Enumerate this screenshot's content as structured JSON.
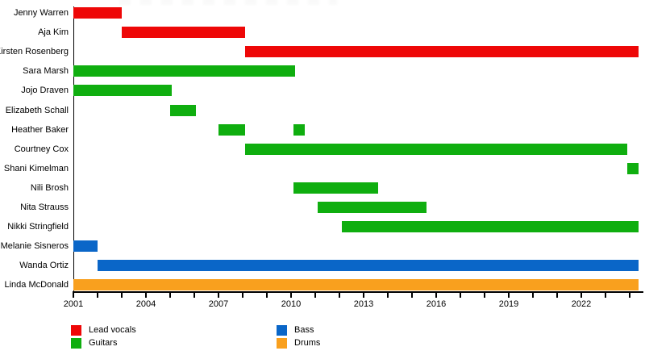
{
  "chart_data": {
    "type": "bar",
    "subtype": "gantt_timeline",
    "title": "",
    "description": "Band member timeline: horizontal bars show each member's tenure, colored by role",
    "x_axis": {
      "min": 2001,
      "max": 2024.36,
      "labeled_ticks": [
        2001,
        2004,
        2007,
        2010,
        2013,
        2016,
        2019,
        2022
      ],
      "minor_tick_interval_years": 1,
      "first_tick_year": 2001,
      "last_tick_year": 2024
    },
    "grid": "off",
    "legend": {
      "position": "bottom-left",
      "entries": [
        {
          "label": "Lead vocals",
          "color": "#ee0707"
        },
        {
          "label": "Guitars",
          "color": "#0fae0f"
        },
        {
          "label": "Bass",
          "color": "#0a66c8"
        },
        {
          "label": "Drums",
          "color": "#f9a01e"
        }
      ]
    },
    "role_colors": {
      "Lead vocals": "#ee0707",
      "Guitars": "#0fae0f",
      "Bass": "#0a66c8",
      "Drums": "#f9a01e"
    },
    "rows": [
      {
        "name": "Jenny Warren",
        "role": "Lead vocals",
        "segments": [
          [
            2001.0,
            2003.0
          ]
        ]
      },
      {
        "name": "Aja Kim",
        "role": "Lead vocals",
        "segments": [
          [
            2003.0,
            2008.1
          ]
        ]
      },
      {
        "name": "Kirsten Rosenberg",
        "role": "Lead vocals",
        "segments": [
          [
            2008.1,
            2024.36
          ]
        ]
      },
      {
        "name": "Sara Marsh",
        "role": "Guitars",
        "segments": [
          [
            2001.0,
            2010.15
          ]
        ]
      },
      {
        "name": "Jojo Draven",
        "role": "Guitars",
        "segments": [
          [
            2001.0,
            2005.05
          ]
        ]
      },
      {
        "name": "Elizabeth Schall",
        "role": "Guitars",
        "segments": [
          [
            2005.0,
            2006.05
          ]
        ]
      },
      {
        "name": "Heather Baker",
        "role": "Guitars",
        "segments": [
          [
            2007.0,
            2008.1
          ],
          [
            2010.1,
            2010.55
          ]
        ]
      },
      {
        "name": "Courtney Cox",
        "role": "Guitars",
        "segments": [
          [
            2008.1,
            2023.9
          ]
        ]
      },
      {
        "name": "Shani Kimelman",
        "role": "Guitars",
        "segments": [
          [
            2023.9,
            2024.36
          ]
        ]
      },
      {
        "name": "Nili Brosh",
        "role": "Guitars",
        "segments": [
          [
            2010.1,
            2013.6
          ]
        ]
      },
      {
        "name": "Nita Strauss",
        "role": "Guitars",
        "segments": [
          [
            2011.1,
            2015.6
          ]
        ]
      },
      {
        "name": "Nikki Stringfield",
        "role": "Guitars",
        "segments": [
          [
            2012.1,
            2024.36
          ]
        ]
      },
      {
        "name": "Melanie Sisneros",
        "role": "Bass",
        "segments": [
          [
            2001.0,
            2002.0
          ]
        ]
      },
      {
        "name": "Wanda Ortiz",
        "role": "Bass",
        "segments": [
          [
            2002.0,
            2024.36
          ]
        ]
      },
      {
        "name": "Linda McDonald",
        "role": "Drums",
        "segments": [
          [
            2001.0,
            2024.36
          ]
        ]
      }
    ],
    "axis_color": "#000000",
    "text_color": "#000000",
    "background_color": "#ffffff"
  }
}
